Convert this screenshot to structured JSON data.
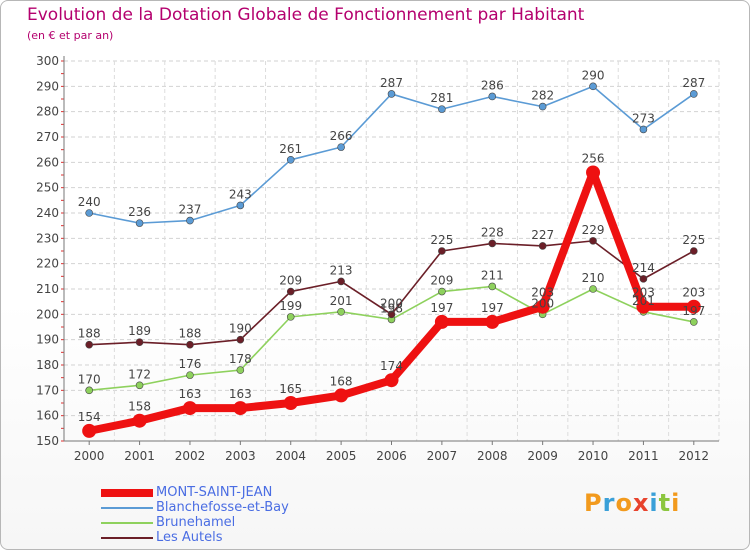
{
  "chart_data": {
    "type": "line",
    "title": "Evolution de la Dotation Globale de Fonctionnement par Habitant",
    "subtitle": "(en € et par an)",
    "xlabel": "",
    "ylabel": "",
    "ylim": [
      150,
      300
    ],
    "yticks": [
      150,
      160,
      170,
      180,
      190,
      200,
      210,
      220,
      230,
      240,
      250,
      260,
      270,
      280,
      290,
      300
    ],
    "categories": [
      "2000",
      "2001",
      "2002",
      "2003",
      "2004",
      "2005",
      "2006",
      "2007",
      "2008",
      "2009",
      "2010",
      "2011",
      "2012"
    ],
    "grid": true,
    "legend_position": "bottom-left",
    "series": [
      {
        "name": "Blanchefosse-et-Bay",
        "color": "#5b9bd5",
        "values": [
          240,
          236,
          237,
          243,
          261,
          266,
          287,
          281,
          286,
          282,
          290,
          273,
          287
        ]
      },
      {
        "name": "Brunehamel",
        "color": "#8ed15d",
        "values": [
          170,
          172,
          176,
          178,
          199,
          201,
          198,
          209,
          211,
          200,
          210,
          201,
          197
        ]
      },
      {
        "name": "Les Autels",
        "color": "#6b1f28",
        "values": [
          188,
          189,
          188,
          190,
          209,
          213,
          200,
          225,
          228,
          227,
          229,
          214,
          225
        ]
      },
      {
        "name": "MONT-SAINT-JEAN",
        "color": "#ee1111",
        "values": [
          154,
          158,
          163,
          163,
          165,
          168,
          174,
          197,
          197,
          203,
          256,
          203,
          203
        ]
      }
    ]
  },
  "legend_order": [
    "MONT-SAINT-JEAN",
    "Blanchefosse-et-Bay",
    "Brunehamel",
    "Les Autels"
  ],
  "logo": {
    "text": "Proxiti",
    "colors": [
      "#f29a1d",
      "#3aa0d8",
      "#f29a1d",
      "#e8432d",
      "#3aa0d8",
      "#8cc63f",
      "#f29a1d"
    ]
  }
}
